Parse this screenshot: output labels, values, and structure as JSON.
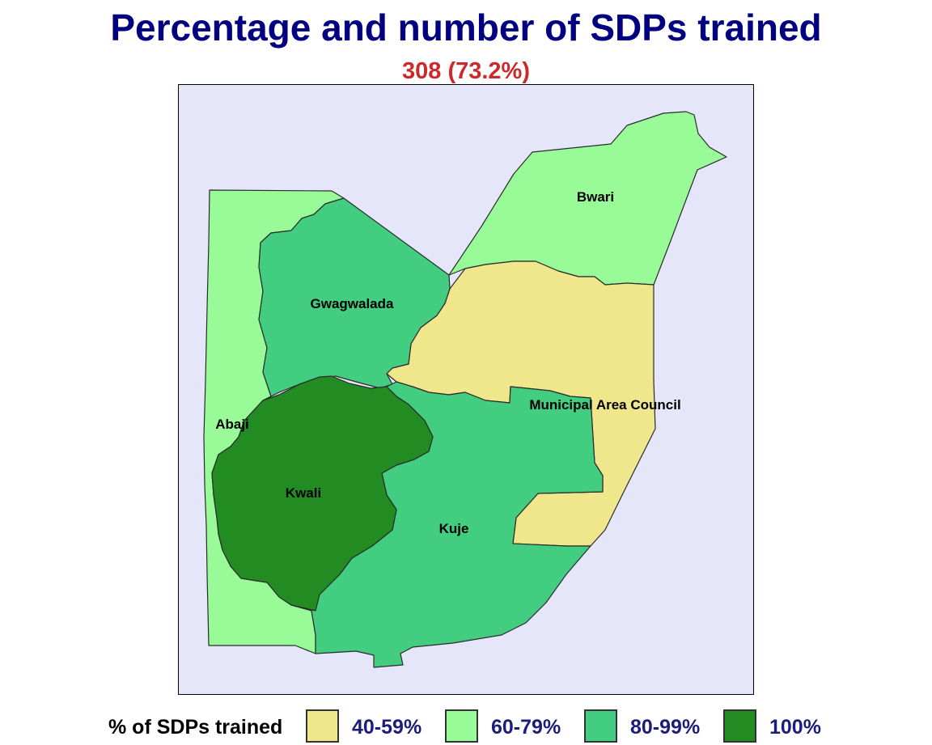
{
  "title": "Percentage and number of SDPs trained",
  "subtitle": "308 (73.2%)",
  "colors": {
    "background": "#e6e6fa",
    "band_40_59": "#f0e68c",
    "band_60_79": "#98fb98",
    "band_80_99": "#43cd80",
    "band_100": "#228b22"
  },
  "regions": {
    "bwari": {
      "label": "Bwari",
      "band": "60-79%"
    },
    "gwagwalada": {
      "label": "Gwagwalada",
      "band": "80-99%"
    },
    "abaji": {
      "label": "Abaji",
      "band": "60-79%"
    },
    "kwali": {
      "label": "Kwali",
      "band": "100%"
    },
    "kuje": {
      "label": "Kuje",
      "band": "80-99%"
    },
    "amac": {
      "label": "Municipal Area Council",
      "band": "40-59%"
    }
  },
  "legend": {
    "title": "% of SDPs trained",
    "items": [
      {
        "label": "40-59%",
        "color": "#f0e68c"
      },
      {
        "label": "60-79%",
        "color": "#98fb98"
      },
      {
        "label": "80-99%",
        "color": "#43cd80"
      },
      {
        "label": "100%",
        "color": "#228b22"
      }
    ]
  }
}
